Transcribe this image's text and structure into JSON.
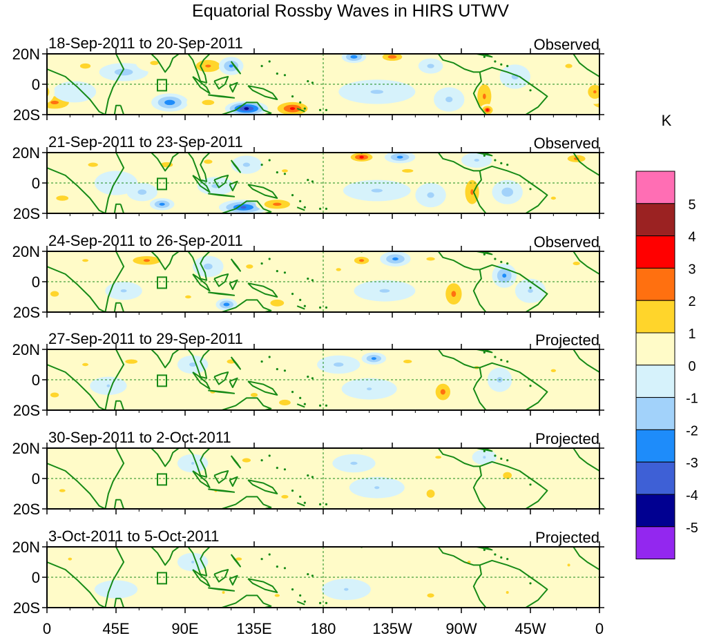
{
  "chart_data": {
    "type": "heatmap",
    "title": "Equatorial Rossby Waves in HIRS UTWV",
    "units": "K",
    "x_ticks": [
      "0",
      "45E",
      "90E",
      "135E",
      "180",
      "135W",
      "90W",
      "45W",
      "0"
    ],
    "y_ticks": [
      "20N",
      "0",
      "20S"
    ],
    "panels": [
      {
        "date_range": "18-Sep-2011 to 20-Sep-2011",
        "status": "Observed",
        "features": [
          {
            "lon": 5,
            "lat": -12,
            "rlon": 16,
            "rlat": 7,
            "value": 2.4
          },
          {
            "lon": 25,
            "lat": 12,
            "rlon": 12,
            "rlat": 6,
            "value": 1.4
          },
          {
            "lon": 18,
            "lat": -5,
            "rlon": 14,
            "rlat": 7,
            "value": -0.8
          },
          {
            "lon": 50,
            "lat": 8,
            "rlon": 16,
            "rlat": 6,
            "value": -1.6
          },
          {
            "lon": 70,
            "lat": 14,
            "rlon": 12,
            "rlat": 6,
            "value": 1.3
          },
          {
            "lon": 80,
            "lat": -12,
            "rlon": 12,
            "rlat": 6,
            "value": -2.8
          },
          {
            "lon": 105,
            "lat": 12,
            "rlon": 14,
            "rlat": 7,
            "value": 2.3
          },
          {
            "lon": 105,
            "lat": -12,
            "rlon": 14,
            "rlat": 6,
            "value": 1.4
          },
          {
            "lon": 130,
            "lat": -16,
            "rlon": 14,
            "rlat": 5,
            "value": -4.5
          },
          {
            "lon": 160,
            "lat": -16,
            "rlon": 14,
            "rlat": 6,
            "value": 3.4
          },
          {
            "lon": 120,
            "lat": 12,
            "rlon": 8,
            "rlat": 6,
            "value": -2.4
          },
          {
            "lon": 145,
            "lat": 6,
            "rlon": 16,
            "rlat": 8,
            "value": 0.8
          },
          {
            "lon": 200,
            "lat": 18,
            "rlon": 8,
            "rlat": 4,
            "value": -2.8
          },
          {
            "lon": 225,
            "lat": 18,
            "rlon": 10,
            "rlat": 4,
            "value": 2.8
          },
          {
            "lon": 215,
            "lat": -5,
            "rlon": 25,
            "rlat": 8,
            "value": -1.2
          },
          {
            "lon": 250,
            "lat": 12,
            "rlon": 8,
            "rlat": 5,
            "value": -1.4
          },
          {
            "lon": 285,
            "lat": -8,
            "rlon": 8,
            "rlat": 14,
            "value": 2.3
          },
          {
            "lon": 287,
            "lat": -17,
            "rlon": 5,
            "rlat": 4,
            "value": 3.3
          },
          {
            "lon": 262,
            "lat": -10,
            "rlon": 10,
            "rlat": 8,
            "value": -1.3
          },
          {
            "lon": 305,
            "lat": 5,
            "rlon": 10,
            "rlat": 8,
            "value": -1.3
          },
          {
            "lon": 340,
            "lat": 12,
            "rlon": 10,
            "rlat": 6,
            "value": 1.3
          },
          {
            "lon": 357,
            "lat": -5,
            "rlon": 8,
            "rlat": 8,
            "value": 2.3
          }
        ]
      },
      {
        "date_range": "21-Sep-2011 to 23-Sep-2011",
        "status": "Observed",
        "features": [
          {
            "lon": 10,
            "lat": -10,
            "rlon": 14,
            "rlat": 6,
            "value": 1.4
          },
          {
            "lon": 30,
            "lat": 12,
            "rlon": 14,
            "rlat": 6,
            "value": 1.3
          },
          {
            "lon": 45,
            "lat": 0,
            "rlon": 14,
            "rlat": 8,
            "value": -0.8
          },
          {
            "lon": 62,
            "lat": -6,
            "rlon": 10,
            "rlat": 6,
            "value": -1.4
          },
          {
            "lon": 75,
            "lat": -14,
            "rlon": 8,
            "rlat": 4,
            "value": -2.6
          },
          {
            "lon": 78,
            "lat": 12,
            "rlon": 14,
            "rlat": 6,
            "value": 1.4
          },
          {
            "lon": 105,
            "lat": 14,
            "rlon": 12,
            "rlat": 6,
            "value": 1.3
          },
          {
            "lon": 110,
            "lat": -2,
            "rlon": 12,
            "rlat": 6,
            "value": -1.3
          },
          {
            "lon": 128,
            "lat": -16,
            "rlon": 16,
            "rlat": 5,
            "value": -3.4
          },
          {
            "lon": 150,
            "lat": -14,
            "rlon": 14,
            "rlat": 5,
            "value": 2.5
          },
          {
            "lon": 130,
            "lat": 12,
            "rlon": 10,
            "rlat": 6,
            "value": -1.3
          },
          {
            "lon": 155,
            "lat": 8,
            "rlon": 12,
            "rlat": 6,
            "value": 1.2
          },
          {
            "lon": 205,
            "lat": 17,
            "rlon": 10,
            "rlat": 4,
            "value": 3.5
          },
          {
            "lon": 230,
            "lat": 17,
            "rlon": 10,
            "rlat": 4,
            "value": -2.5
          },
          {
            "lon": 235,
            "lat": 8,
            "rlon": 16,
            "rlat": 5,
            "value": 1.3
          },
          {
            "lon": 215,
            "lat": -5,
            "rlon": 22,
            "rlat": 7,
            "value": -1.2
          },
          {
            "lon": 250,
            "lat": -8,
            "rlon": 10,
            "rlat": 8,
            "value": -1.3
          },
          {
            "lon": 277,
            "lat": -6,
            "rlon": 8,
            "rlat": 14,
            "value": 2.3
          },
          {
            "lon": 280,
            "lat": 15,
            "rlon": 10,
            "rlat": 5,
            "value": -1.2
          },
          {
            "lon": 300,
            "lat": -6,
            "rlon": 10,
            "rlat": 8,
            "value": -1.6
          },
          {
            "lon": 330,
            "lat": -10,
            "rlon": 10,
            "rlat": 6,
            "value": 1.2
          },
          {
            "lon": 345,
            "lat": 16,
            "rlon": 10,
            "rlat": 4,
            "value": 2.4
          }
        ]
      },
      {
        "date_range": "24-Sep-2011 to 26-Sep-2011",
        "status": "Observed",
        "features": [
          {
            "lon": 5,
            "lat": -8,
            "rlon": 12,
            "rlat": 8,
            "value": 1.3
          },
          {
            "lon": 25,
            "lat": 14,
            "rlon": 12,
            "rlat": 5,
            "value": 1.2
          },
          {
            "lon": 65,
            "lat": 14,
            "rlon": 16,
            "rlat": 5,
            "value": 2.3
          },
          {
            "lon": 50,
            "lat": -6,
            "rlon": 12,
            "rlat": 6,
            "value": -1.2
          },
          {
            "lon": 105,
            "lat": 10,
            "rlon": 10,
            "rlat": 7,
            "value": -1.4
          },
          {
            "lon": 92,
            "lat": -10,
            "rlon": 12,
            "rlat": 6,
            "value": 1.2
          },
          {
            "lon": 117,
            "lat": -15,
            "rlon": 7,
            "rlat": 4,
            "value": -2.8
          },
          {
            "lon": 150,
            "lat": -14,
            "rlon": 10,
            "rlat": 5,
            "value": 1.8
          },
          {
            "lon": 132,
            "lat": 10,
            "rlon": 10,
            "rlat": 6,
            "value": 1.3
          },
          {
            "lon": 190,
            "lat": 8,
            "rlon": 10,
            "rlat": 6,
            "value": 1.2
          },
          {
            "lon": 205,
            "lat": 14,
            "rlon": 8,
            "rlat": 4,
            "value": 2.5
          },
          {
            "lon": 227,
            "lat": 15,
            "rlon": 10,
            "rlat": 5,
            "value": -2.5
          },
          {
            "lon": 250,
            "lat": 15,
            "rlon": 12,
            "rlat": 5,
            "value": 1.3
          },
          {
            "lon": 220,
            "lat": -6,
            "rlon": 20,
            "rlat": 7,
            "value": -1.2
          },
          {
            "lon": 265,
            "lat": -8,
            "rlon": 9,
            "rlat": 12,
            "value": 2.4
          },
          {
            "lon": 298,
            "lat": 4,
            "rlon": 8,
            "rlat": 8,
            "value": -2.4
          },
          {
            "lon": 315,
            "lat": -6,
            "rlon": 10,
            "rlat": 8,
            "value": -1.2
          },
          {
            "lon": 345,
            "lat": 12,
            "rlon": 10,
            "rlat": 5,
            "value": 1.3
          }
        ]
      },
      {
        "date_range": "27-Sep-2011 to 29-Sep-2011",
        "status": "Projected",
        "features": [
          {
            "lon": 5,
            "lat": -10,
            "rlon": 12,
            "rlat": 7,
            "value": 1.3
          },
          {
            "lon": 25,
            "lat": 10,
            "rlon": 12,
            "rlat": 6,
            "value": 1.2
          },
          {
            "lon": 55,
            "lat": 12,
            "rlon": 14,
            "rlat": 5,
            "value": 1.4
          },
          {
            "lon": 40,
            "lat": -4,
            "rlon": 12,
            "rlat": 6,
            "value": -1.1
          },
          {
            "lon": 95,
            "lat": 10,
            "rlon": 10,
            "rlat": 6,
            "value": -1.3
          },
          {
            "lon": 120,
            "lat": 12,
            "rlon": 12,
            "rlat": 6,
            "value": 1.3
          },
          {
            "lon": 108,
            "lat": -8,
            "rlon": 10,
            "rlat": 6,
            "value": 1.2
          },
          {
            "lon": 135,
            "lat": -10,
            "rlon": 10,
            "rlat": 6,
            "value": 1.3
          },
          {
            "lon": 155,
            "lat": -15,
            "rlon": 10,
            "rlat": 5,
            "value": 1.6
          },
          {
            "lon": 190,
            "lat": 10,
            "rlon": 14,
            "rlat": 6,
            "value": -1.3
          },
          {
            "lon": 213,
            "lat": 14,
            "rlon": 8,
            "rlat": 4,
            "value": -2.5
          },
          {
            "lon": 235,
            "lat": 12,
            "rlon": 12,
            "rlat": 5,
            "value": 1.3
          },
          {
            "lon": 210,
            "lat": -6,
            "rlon": 18,
            "rlat": 7,
            "value": -1.1
          },
          {
            "lon": 258,
            "lat": -8,
            "rlon": 8,
            "rlat": 9,
            "value": 2.5
          },
          {
            "lon": 280,
            "lat": 8,
            "rlon": 10,
            "rlat": 6,
            "value": 1.2
          },
          {
            "lon": 295,
            "lat": 0,
            "rlon": 8,
            "rlat": 8,
            "value": -1.3
          },
          {
            "lon": 330,
            "lat": 6,
            "rlon": 10,
            "rlat": 6,
            "value": 1.2
          }
        ]
      },
      {
        "date_range": "30-Sep-2011 to 2-Oct-2011",
        "status": "Projected",
        "features": [
          {
            "lon": 10,
            "lat": -8,
            "rlon": 12,
            "rlat": 6,
            "value": 1.2
          },
          {
            "lon": 45,
            "lat": 8,
            "rlon": 14,
            "rlat": 6,
            "value": 0.6
          },
          {
            "lon": 95,
            "lat": 10,
            "rlon": 10,
            "rlat": 6,
            "value": -1.1
          },
          {
            "lon": 130,
            "lat": 12,
            "rlon": 12,
            "rlat": 6,
            "value": 1.3
          },
          {
            "lon": 110,
            "lat": -8,
            "rlon": 10,
            "rlat": 6,
            "value": 1.1
          },
          {
            "lon": 155,
            "lat": -12,
            "rlon": 10,
            "rlat": 5,
            "value": 1.3
          },
          {
            "lon": 200,
            "lat": 10,
            "rlon": 14,
            "rlat": 6,
            "value": -1.2
          },
          {
            "lon": 215,
            "lat": -6,
            "rlon": 18,
            "rlat": 7,
            "value": -1.1
          },
          {
            "lon": 250,
            "lat": -10,
            "rlon": 8,
            "rlat": 8,
            "value": 1.5
          },
          {
            "lon": 255,
            "lat": 14,
            "rlon": 12,
            "rlat": 5,
            "value": 1.2
          },
          {
            "lon": 300,
            "lat": 2,
            "rlon": 10,
            "rlat": 8,
            "value": 1.4
          },
          {
            "lon": 285,
            "lat": 14,
            "rlon": 8,
            "rlat": 5,
            "value": -1.1
          }
        ]
      },
      {
        "date_range": "3-Oct-2011 to 5-Oct-2011",
        "status": "Projected",
        "features": [
          {
            "lon": 15,
            "lat": 12,
            "rlon": 14,
            "rlat": 6,
            "value": 1.1
          },
          {
            "lon": 45,
            "lat": -8,
            "rlon": 14,
            "rlat": 6,
            "value": -0.8
          },
          {
            "lon": 95,
            "lat": 10,
            "rlon": 10,
            "rlat": 6,
            "value": -1.1
          },
          {
            "lon": 125,
            "lat": 12,
            "rlon": 12,
            "rlat": 6,
            "value": 1.2
          },
          {
            "lon": 115,
            "lat": -10,
            "rlon": 10,
            "rlat": 6,
            "value": 1.1
          },
          {
            "lon": 150,
            "lat": -12,
            "rlon": 10,
            "rlat": 5,
            "value": 1.2
          },
          {
            "lon": 195,
            "lat": -8,
            "rlon": 16,
            "rlat": 7,
            "value": -1.1
          },
          {
            "lon": 250,
            "lat": -12,
            "rlon": 10,
            "rlat": 6,
            "value": 1.3
          },
          {
            "lon": 275,
            "lat": 10,
            "rlon": 12,
            "rlat": 6,
            "value": 1.1
          },
          {
            "lon": 300,
            "lat": -10,
            "rlon": 10,
            "rlat": 6,
            "value": 1.1
          },
          {
            "lon": 340,
            "lat": 8,
            "rlon": 10,
            "rlat": 6,
            "value": 1.1
          }
        ]
      }
    ],
    "colorbar": {
      "label": "K",
      "bins": [
        {
          "min": 5,
          "max": null,
          "color": "#ff6eb4"
        },
        {
          "min": 4,
          "max": 5,
          "color": "#9b2222"
        },
        {
          "min": 3,
          "max": 4,
          "color": "#ff0000"
        },
        {
          "min": 2,
          "max": 3,
          "color": "#ff7010"
        },
        {
          "min": 1,
          "max": 2,
          "color": "#ffd52b"
        },
        {
          "min": 0,
          "max": 1,
          "color": "#fffbc8"
        },
        {
          "min": -1,
          "max": 0,
          "color": "#d6f2fb"
        },
        {
          "min": -2,
          "max": -1,
          "color": "#a2d2fa"
        },
        {
          "min": -3,
          "max": -2,
          "color": "#1e8cfa"
        },
        {
          "min": -4,
          "max": -3,
          "color": "#3e60d6"
        },
        {
          "min": -5,
          "max": -4,
          "color": "#010091"
        },
        {
          "min": null,
          "max": -5,
          "color": "#9327ef"
        }
      ],
      "tick_labels": [
        "5",
        "4",
        "3",
        "2",
        "1",
        "0",
        "-1",
        "-2",
        "-3",
        "-4",
        "-5"
      ]
    },
    "coastline_color": "#168a16",
    "equator_line_color": "#168a16"
  }
}
